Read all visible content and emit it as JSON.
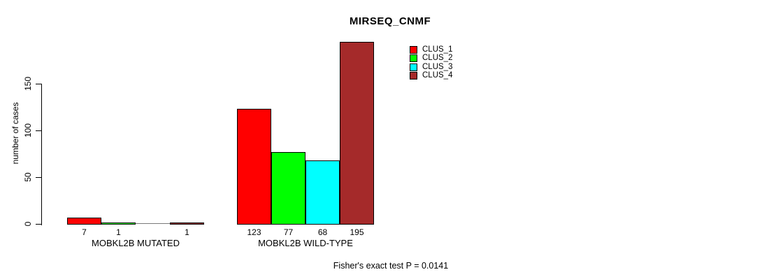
{
  "chart_data": {
    "type": "bar",
    "title": "MIRSEQ_CNMF",
    "ylabel": "number of cases",
    "xlabel": "",
    "categories": [
      "MOBKL2B MUTATED",
      "MOBKL2B WILD-TYPE"
    ],
    "series": [
      {
        "name": "CLUS_1",
        "color": "#FF0000",
        "values": [
          7,
          123
        ]
      },
      {
        "name": "CLUS_2",
        "color": "#00FF00",
        "values": [
          1,
          77
        ]
      },
      {
        "name": "CLUS_3",
        "color": "#00FFFF",
        "values": [
          0,
          68
        ]
      },
      {
        "name": "CLUS_4",
        "color": "#A52A2A",
        "values": [
          1,
          195
        ]
      }
    ],
    "bar_value_labels_shown": true,
    "zero_value_bars_unlabeled": true,
    "ylim": [
      0,
      150
    ],
    "yticks": [
      0,
      50,
      100,
      150
    ],
    "grid": false,
    "legend_position": "top-right",
    "annotation": "Fisher's exact test P = 0.0141",
    "colors": {
      "background": "#FFFFFF",
      "axis": "#000000",
      "text": "#000000"
    }
  }
}
